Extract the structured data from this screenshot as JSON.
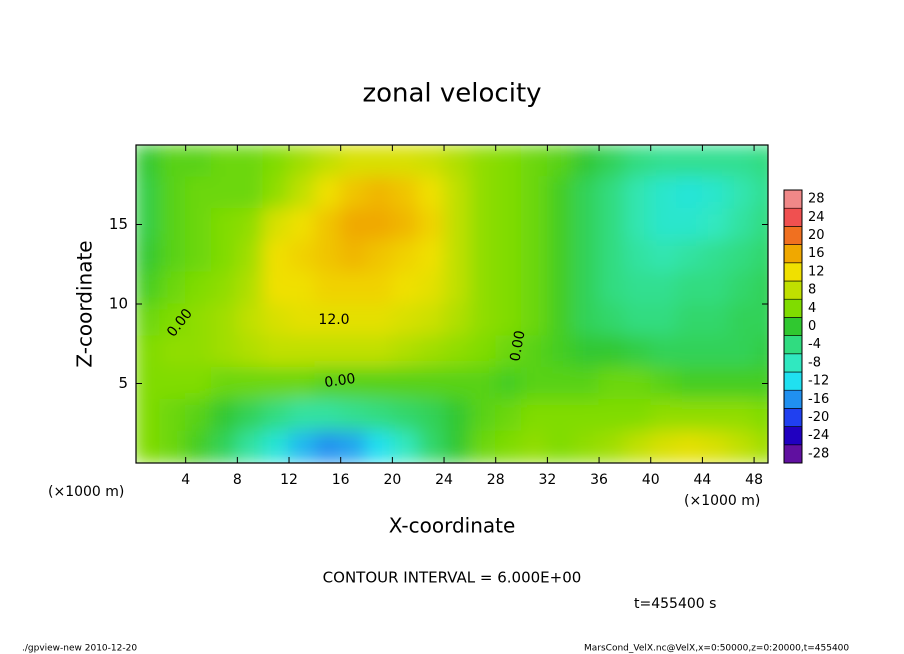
{
  "chart_data": {
    "type": "contour",
    "title": "zonal velocity",
    "xlabel": "X-coordinate",
    "ylabel": "Z-coordinate",
    "xunit": "(×1000 m)",
    "yunit": "(×1000 m)",
    "xlim": [
      0,
      49
    ],
    "ylim": [
      0,
      20
    ],
    "xticks": [
      4,
      8,
      12,
      16,
      20,
      24,
      28,
      32,
      36,
      40,
      44,
      48
    ],
    "yticks": [
      5,
      10,
      15
    ],
    "x": [
      1,
      3,
      5,
      7,
      9,
      11,
      13,
      15,
      17,
      19,
      21,
      23,
      25,
      27,
      29,
      31,
      33,
      35,
      37,
      39,
      41,
      43,
      45,
      47,
      49
    ],
    "y": [
      19,
      17,
      15,
      13,
      11,
      9,
      7,
      5,
      3,
      1
    ],
    "z": [
      [
        0,
        2,
        2,
        3,
        3,
        4,
        6,
        8,
        10,
        10,
        10,
        9,
        7,
        5,
        4,
        3,
        2,
        0,
        -2,
        -4,
        -5,
        -5,
        -5,
        -5,
        -4
      ],
      [
        -1,
        2,
        3,
        3,
        3,
        5,
        8,
        12,
        14,
        15,
        14,
        12,
        8,
        5,
        4,
        3,
        1,
        -2,
        -4,
        -7,
        -9,
        -10,
        -9,
        -7,
        -5
      ],
      [
        -1,
        2,
        3,
        4,
        5,
        10,
        12,
        14,
        16,
        16,
        15,
        13,
        8,
        5,
        4,
        3,
        1,
        -2,
        -4,
        -7,
        -9,
        -9,
        -8,
        -6,
        -4
      ],
      [
        0,
        2,
        3,
        4,
        6,
        12,
        13,
        14,
        15,
        14,
        13,
        12,
        8,
        5,
        4,
        3,
        1,
        -2,
        -4,
        -6,
        -7,
        -6,
        -5,
        -4,
        -3
      ],
      [
        1,
        3,
        4,
        5,
        7,
        12,
        12,
        13,
        13,
        13,
        12,
        11,
        8,
        5,
        4,
        3,
        1,
        -2,
        -4,
        -5,
        -5,
        -4,
        -4,
        -3,
        -2
      ],
      [
        3,
        4,
        5,
        6,
        8,
        10,
        11,
        11,
        11,
        11,
        10,
        9,
        7,
        5,
        4,
        3,
        1,
        -2,
        -3,
        -4,
        -4,
        -3,
        -3,
        -2,
        -2
      ],
      [
        4,
        5,
        5,
        6,
        7,
        8,
        8,
        8,
        8,
        8,
        7,
        6,
        5,
        4,
        3,
        2,
        1,
        0,
        0,
        -1,
        -2,
        -2,
        -2,
        -2,
        -1
      ],
      [
        4,
        4,
        4,
        3,
        3,
        3,
        3,
        2,
        2,
        2,
        2,
        2,
        2,
        2,
        1,
        2,
        2,
        2,
        3,
        3,
        2,
        1,
        1,
        1,
        1
      ],
      [
        4,
        3,
        2,
        0,
        -2,
        -4,
        -6,
        -6,
        -5,
        -4,
        -3,
        -2,
        0,
        2,
        3,
        4,
        4,
        4,
        4,
        4,
        5,
        5,
        5,
        5,
        4
      ],
      [
        4,
        3,
        1,
        -2,
        -6,
        -10,
        -14,
        -16,
        -15,
        -12,
        -8,
        -3,
        0,
        3,
        4,
        5,
        4,
        5,
        6,
        8,
        10,
        11,
        10,
        8,
        6
      ]
    ],
    "clim": [
      -30,
      30
    ],
    "cticks": [
      -28,
      -24,
      -20,
      -16,
      -12,
      -8,
      -4,
      0,
      4,
      8,
      12,
      16,
      20,
      24,
      28
    ],
    "colors": [
      "#6010a0",
      "#2000c0",
      "#2040f0",
      "#2090f0",
      "#20e0f0",
      "#30e8c0",
      "#30dc80",
      "#30c830",
      "#80dc00",
      "#c0e000",
      "#f0e000",
      "#f0a800",
      "#f07020",
      "#f05050",
      "#f08888"
    ],
    "contour_labels": [
      "0.00",
      "0.00",
      "0.00",
      "12.0"
    ],
    "note": "CONTOUR INTERVAL = 6.000E+00",
    "time": "t=455400 s",
    "footer_left": "./gpview-new  2010-12-20",
    "footer_right": "MarsCond_VelX.nc@VelX,x=0:50000,z=0:20000,t=455400"
  }
}
